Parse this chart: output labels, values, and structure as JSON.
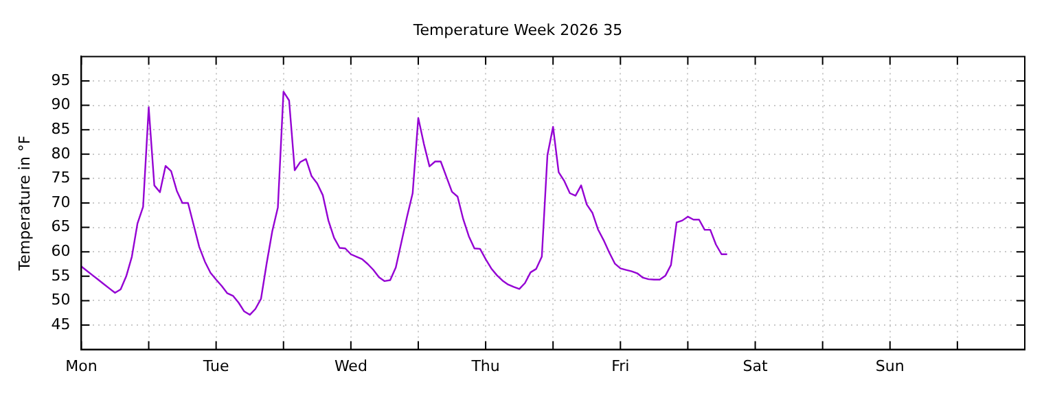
{
  "chart_data": {
    "type": "line",
    "title": "Temperature Week 2026 35",
    "ylabel": "Temperature in °F",
    "categories": [
      "Mon",
      null,
      null,
      null,
      null,
      null,
      null,
      null,
      null,
      null,
      null,
      null,
      null,
      null,
      null,
      null,
      null,
      null,
      null,
      null,
      null,
      null,
      null,
      null,
      "Tue",
      null,
      null,
      null,
      null,
      null,
      null,
      null,
      null,
      null,
      null,
      null,
      null,
      null,
      null,
      null,
      null,
      null,
      null,
      null,
      null,
      null,
      null,
      null,
      "Wed",
      null,
      null,
      null,
      null,
      null,
      null,
      null,
      null,
      null,
      null,
      null,
      null,
      null,
      null,
      null,
      null,
      null,
      null,
      null,
      null,
      null,
      null,
      null,
      "Thu",
      null,
      null,
      null,
      null,
      null,
      null,
      null,
      null,
      null,
      null,
      null,
      null,
      null,
      null,
      null,
      null,
      null,
      null,
      null,
      null,
      null,
      null,
      null,
      "Fri",
      null,
      null,
      null,
      null,
      null,
      null,
      null,
      null,
      null,
      null,
      null,
      null,
      null,
      null,
      null,
      null,
      null,
      null,
      null,
      null,
      null,
      null,
      null,
      "Sat",
      null,
      null,
      null,
      null,
      null,
      null,
      null,
      null,
      null,
      null,
      null,
      null,
      null,
      null,
      null,
      null,
      null,
      null,
      null,
      null,
      null,
      null,
      null,
      "Sun",
      null,
      null,
      null,
      null,
      null,
      null,
      null,
      null,
      null,
      null,
      null,
      null,
      null,
      null,
      null,
      null,
      null,
      null,
      null,
      null,
      null,
      null,
      null,
      null
    ],
    "ylim": [
      40,
      100
    ],
    "yticks": [
      45,
      50,
      55,
      60,
      65,
      70,
      75,
      80,
      85,
      90,
      95
    ],
    "grid": true,
    "legend": false,
    "marker": "none",
    "line_style": "solid",
    "series": [
      {
        "color": "#9400d3",
        "values": [
          57.0,
          56.1,
          55.2,
          54.3,
          53.4,
          52.5,
          51.6,
          52.3,
          55.0,
          59.0,
          65.8,
          69.2,
          89.6,
          73.6,
          72.2,
          77.6,
          76.5,
          72.5,
          70.0,
          70.0,
          65.5,
          61.0,
          58.0,
          55.7,
          54.3,
          53.0,
          51.5,
          51.0,
          49.6,
          47.8,
          47.1,
          48.3,
          50.4,
          57.6,
          64.2,
          69.1,
          92.8,
          91.0,
          76.7,
          78.4,
          79.0,
          75.5,
          74.0,
          71.6,
          66.4,
          62.9,
          60.8,
          60.7,
          59.5,
          59.0,
          58.5,
          57.5,
          56.3,
          54.8,
          54.0,
          54.2,
          56.8,
          62.0,
          67.2,
          72.0,
          87.4,
          82.1,
          77.5,
          78.5,
          78.5,
          75.4,
          72.3,
          71.3,
          66.7,
          63.2,
          60.7,
          60.6,
          58.5,
          56.6,
          55.2,
          54.1,
          53.3,
          52.8,
          52.4,
          53.6,
          55.8,
          56.5,
          59.0,
          79.8,
          85.6,
          76.3,
          74.5,
          72.0,
          71.5,
          73.6,
          69.7,
          68.0,
          64.6,
          62.4,
          59.9,
          57.6,
          56.6,
          56.3,
          56.0,
          55.6,
          54.7,
          54.4,
          54.3,
          54.3,
          55.1,
          57.3,
          66.0,
          66.4,
          67.2,
          66.6,
          66.6,
          64.5,
          64.5,
          61.5,
          59.5,
          59.5,
          null,
          null,
          null,
          null,
          null,
          null,
          null,
          null,
          null,
          null,
          null,
          null,
          null,
          null,
          null,
          null,
          null,
          null,
          null,
          null,
          null,
          null,
          null,
          null,
          null,
          null,
          null,
          null,
          null,
          null,
          null,
          null,
          null,
          null,
          null,
          null,
          null,
          null,
          null,
          null,
          null,
          null,
          null,
          null,
          null,
          null,
          null,
          null,
          null,
          null,
          null,
          null,
          null
        ]
      }
    ]
  }
}
